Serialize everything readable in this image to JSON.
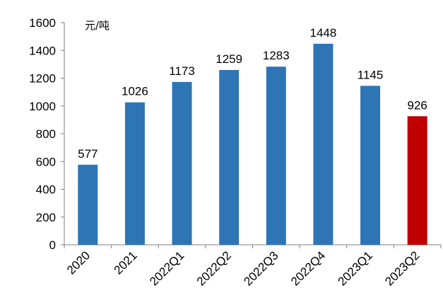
{
  "chart_data": {
    "type": "bar",
    "title": "",
    "xlabel": "",
    "ylabel": "元/吨",
    "categories": [
      "2020",
      "2021",
      "2022Q1",
      "2022Q2",
      "2022Q3",
      "2022Q4",
      "2023Q1",
      "2023Q2"
    ],
    "values": [
      577,
      1026,
      1173,
      1259,
      1283,
      1448,
      1145,
      926
    ],
    "data_labels": [
      "577",
      "1026",
      "1173",
      "1259",
      "1283",
      "1448",
      "1145",
      "926"
    ],
    "bar_colors": [
      "#2e75b6",
      "#2e75b6",
      "#2e75b6",
      "#2e75b6",
      "#2e75b6",
      "#2e75b6",
      "#2e75b6",
      "#c00000"
    ],
    "ylim": [
      0,
      1600
    ],
    "y_ticks": [
      0,
      200,
      400,
      600,
      800,
      1000,
      1200,
      1400,
      1600
    ],
    "y_tick_labels": [
      "0",
      "200",
      "400",
      "600",
      "800",
      "1000",
      "1200",
      "1400",
      "1600"
    ],
    "grid": false,
    "legend": "none"
  }
}
